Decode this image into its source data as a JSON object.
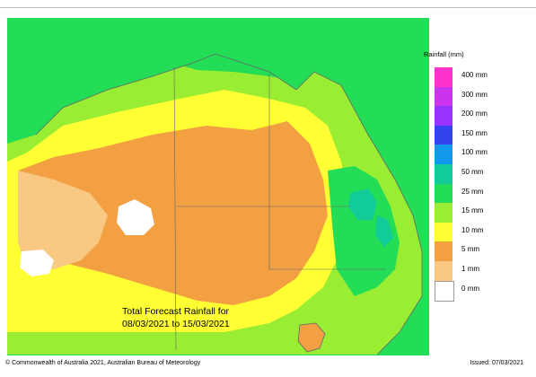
{
  "title_line1": "Total Forecast Rainfall for",
  "title_line2": "08/03/2021 to 15/03/2021",
  "legend": {
    "title": "Rainfall (mm)",
    "items": [
      {
        "label": "400 mm",
        "color": "#ff33cc"
      },
      {
        "label": "300 mm",
        "color": "#cc33ee"
      },
      {
        "label": "200 mm",
        "color": "#9933ff"
      },
      {
        "label": "150 mm",
        "color": "#3344ee"
      },
      {
        "label": "100 mm",
        "color": "#1199ee"
      },
      {
        "label": "50 mm",
        "color": "#11cc99"
      },
      {
        "label": "25 mm",
        "color": "#22dd55"
      },
      {
        "label": "15 mm",
        "color": "#99ee33"
      },
      {
        "label": "10 mm",
        "color": "#ffff33"
      },
      {
        "label": "5 mm",
        "color": "#f2a042"
      },
      {
        "label": "1 mm",
        "color": "#f9c984"
      },
      {
        "label": "0 mm",
        "color": "#ffffff"
      }
    ]
  },
  "footer": {
    "copyright": "© Commonwealth of Australia 2021, Australian Bureau of Meteorology",
    "issued": "Issued: 07/03/2021"
  },
  "colors": {
    "ocean_green": "#22dd55",
    "light_green": "#99ee33",
    "yellow": "#ffff33",
    "orange": "#f2a042",
    "light_orange": "#f9c984",
    "teal": "#11cc99",
    "border": "#666666"
  }
}
